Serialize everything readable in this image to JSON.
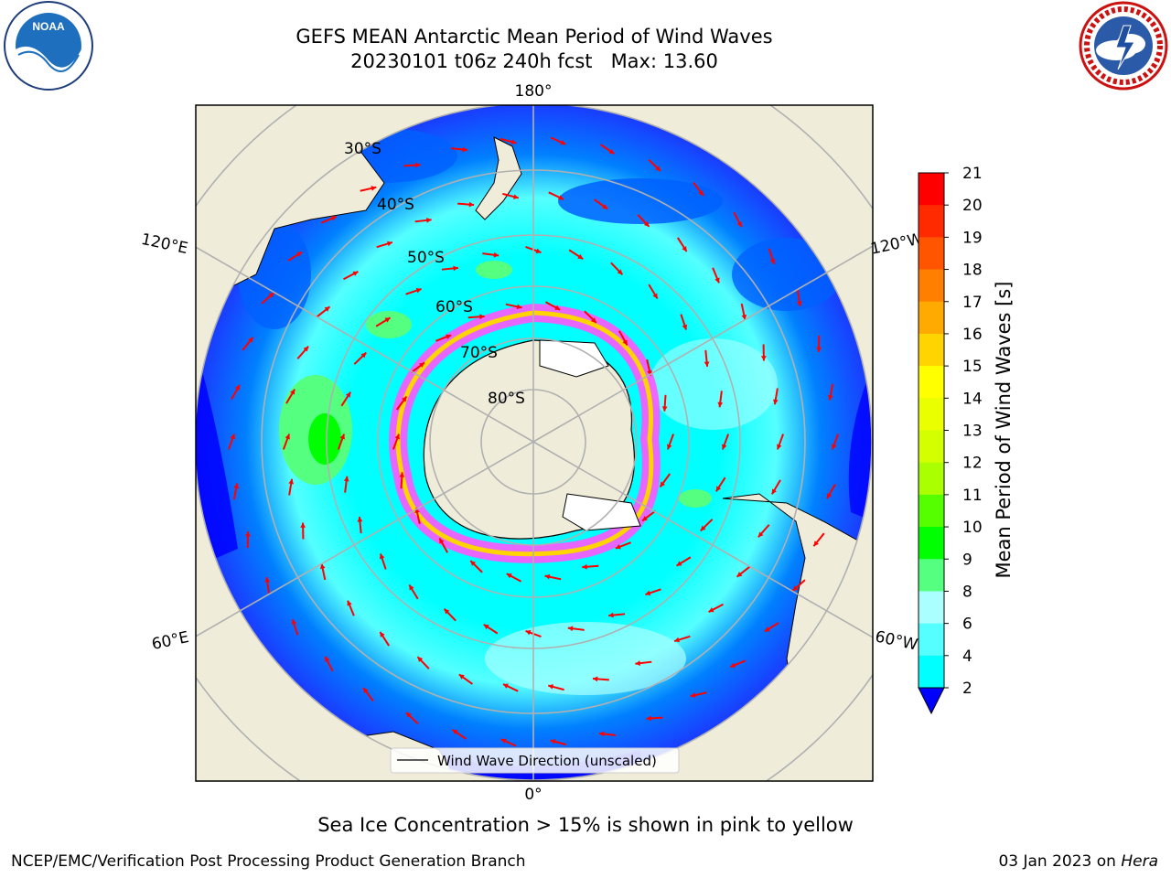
{
  "title_line1": "GEFS MEAN Antarctic Mean Period of Wind Waves",
  "title_line2": "20230101 t06z 240h fcst   Max: 13.60",
  "map": {
    "lon_labels": [
      "180°",
      "120°E",
      "120°W",
      "60°E",
      "60°W",
      "0°"
    ],
    "lat_labels": [
      "30°S",
      "40°S",
      "50°S",
      "60°S",
      "70°S",
      "80°S"
    ],
    "legend_label": "Wind Wave Direction (unscaled)"
  },
  "colorbar": {
    "label": "Mean Period of Wind Waves [s]",
    "ticks": [
      "21",
      "20",
      "19",
      "18",
      "17",
      "16",
      "15",
      "14",
      "13",
      "12",
      "11",
      "10",
      "9",
      "8",
      "6",
      "4",
      "2"
    ],
    "colors": [
      "#ff0000",
      "#ff2a00",
      "#ff5500",
      "#ff7f00",
      "#ffaa00",
      "#ffd400",
      "#ffff00",
      "#eaff00",
      "#d4ff00",
      "#aaff00",
      "#55ff00",
      "#00ff00",
      "#55ff80",
      "#aaffff",
      "#55ffff",
      "#00ffff",
      "#0080ff",
      "#0000ff"
    ],
    "extend_color": "#0000ff"
  },
  "caption": "Sea Ice Concentration > 15% is shown in pink to yellow",
  "footer": {
    "left": "NCEP/EMC/Verification Post Processing Product Generation Branch",
    "right_date": "03 Jan 2023 on ",
    "right_machine": "Hera"
  },
  "logos": {
    "noaa_text": "NOAA",
    "nws_text": "NATIONAL WEATHER SERVICE"
  }
}
